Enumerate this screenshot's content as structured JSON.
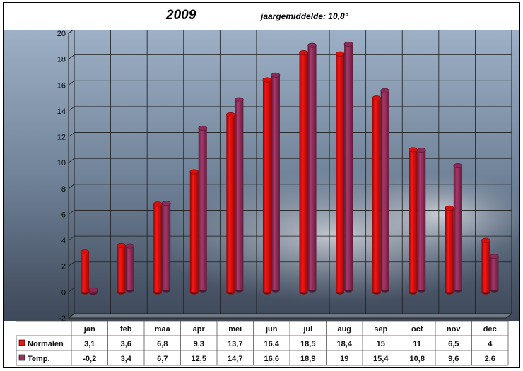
{
  "header": {
    "title": "2009",
    "subtitle": "jaargemiddelde:   10,8°"
  },
  "colors": {
    "normalen": "#ee1111",
    "temp": "#99305f",
    "sky_top": "#8fa3bb",
    "sky_bottom": "#3f4b5c"
  },
  "chart_data": {
    "type": "bar",
    "categories": [
      "jan",
      "feb",
      "maa",
      "apr",
      "mei",
      "jun",
      "jul",
      "aug",
      "sep",
      "oct",
      "nov",
      "dec"
    ],
    "series": [
      {
        "name": "Normalen",
        "values": [
          3.1,
          3.6,
          6.8,
          9.3,
          13.7,
          16.4,
          18.5,
          18.4,
          15,
          11,
          6.5,
          4
        ],
        "labels": [
          "3,1",
          "3,6",
          "6,8",
          "9,3",
          "13,7",
          "16,4",
          "18,5",
          "18,4",
          "15",
          "11",
          "6,5",
          "4"
        ]
      },
      {
        "name": "Temp.",
        "values": [
          -0.2,
          3.4,
          6.7,
          12.5,
          14.7,
          16.6,
          18.9,
          19,
          15.4,
          10.8,
          9.6,
          2.6
        ],
        "labels": [
          "-0,2",
          "3,4",
          "6,7",
          "12,5",
          "14,7",
          "16,6",
          "18,9",
          "19",
          "15,4",
          "10,8",
          "9,6",
          "2,6"
        ]
      }
    ],
    "yticks": [
      "-2",
      "0",
      "2",
      "4",
      "6",
      "8",
      "10",
      "12",
      "14",
      "16",
      "18",
      "20"
    ],
    "ylim": [
      -2,
      20
    ],
    "grid": true,
    "legend": "data table below chart"
  }
}
